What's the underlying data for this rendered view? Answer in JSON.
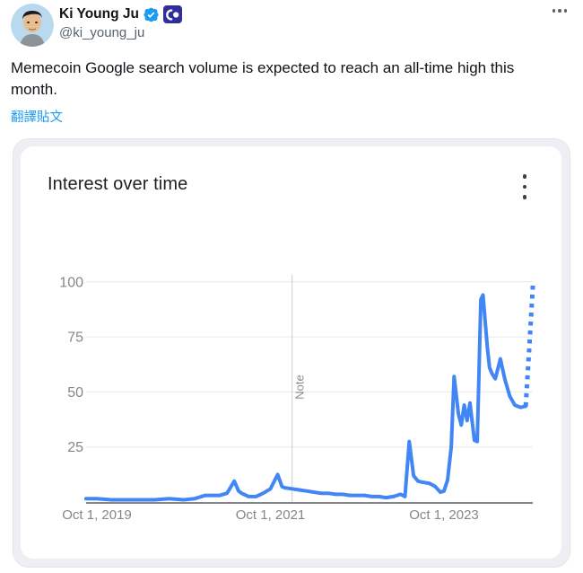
{
  "tweet": {
    "display_name": "Ki Young Ju",
    "handle": "@ki_young_ju",
    "text": "Memecoin Google search volume is expected to reach an all-time high this month.",
    "translate_label": "翻譯貼文"
  },
  "card": {
    "title": "Interest over time"
  },
  "colors": {
    "link_blue": "#1d9bf0",
    "line_blue": "#4285f4",
    "affiliate_badge_bg": "#312d9b",
    "axis_label_gray": "#848689"
  },
  "chart_data": {
    "type": "line",
    "title": "Interest over time",
    "x_unit": "months since Oct 1, 2019",
    "ylim": [
      0,
      100
    ],
    "y_ticks": [
      25,
      50,
      75,
      100
    ],
    "x_ticks": [
      {
        "m": 0,
        "label": "Oct 1, 2019"
      },
      {
        "m": 24,
        "label": "Oct 1, 2021"
      },
      {
        "m": 48,
        "label": "Oct 1, 2023"
      }
    ],
    "note_annotation": {
      "m": 27,
      "label": "Note"
    },
    "line_color": "#4285f4",
    "grid": true,
    "legend": "none",
    "series": [
      {
        "name": "Interest over time",
        "points": [
          [
            -1.5,
            1.5
          ],
          [
            0,
            1.5
          ],
          [
            2,
            1
          ],
          [
            4,
            1
          ],
          [
            6,
            1
          ],
          [
            8,
            1
          ],
          [
            10,
            1.5
          ],
          [
            12,
            1
          ],
          [
            13.5,
            1.5
          ],
          [
            15,
            3
          ],
          [
            16,
            3
          ],
          [
            17,
            3
          ],
          [
            18,
            4
          ],
          [
            19,
            9.5
          ],
          [
            19.6,
            5
          ],
          [
            20,
            4
          ],
          [
            21,
            2.5
          ],
          [
            22,
            2.5
          ],
          [
            23,
            4
          ],
          [
            24,
            6
          ],
          [
            25,
            12.5
          ],
          [
            25.6,
            7
          ],
          [
            26,
            6.5
          ],
          [
            27,
            6
          ],
          [
            28,
            5.5
          ],
          [
            29,
            5
          ],
          [
            30,
            4.5
          ],
          [
            31,
            4
          ],
          [
            32,
            4
          ],
          [
            33,
            3.5
          ],
          [
            34,
            3.5
          ],
          [
            35,
            3
          ],
          [
            36,
            3
          ],
          [
            37,
            3
          ],
          [
            38,
            2.5
          ],
          [
            39,
            2.5
          ],
          [
            40,
            2
          ],
          [
            41,
            2.5
          ],
          [
            42,
            3.5
          ],
          [
            42.6,
            2.5
          ],
          [
            43.2,
            27.5
          ],
          [
            43.8,
            12
          ],
          [
            44.4,
            9.5
          ],
          [
            45,
            9
          ],
          [
            46,
            8.5
          ],
          [
            46.8,
            7
          ],
          [
            47.5,
            4.5
          ],
          [
            48,
            5
          ],
          [
            48.5,
            10
          ],
          [
            49,
            25
          ],
          [
            49.4,
            57
          ],
          [
            50,
            40
          ],
          [
            50.4,
            35
          ],
          [
            50.8,
            44
          ],
          [
            51.2,
            37
          ],
          [
            51.6,
            45
          ],
          [
            52.2,
            28
          ],
          [
            52.6,
            27.5
          ],
          [
            53.1,
            92
          ],
          [
            53.4,
            94
          ],
          [
            54,
            70
          ],
          [
            54.3,
            61
          ],
          [
            54.7,
            58
          ],
          [
            55.1,
            56
          ],
          [
            55.8,
            65
          ],
          [
            56.4,
            56
          ],
          [
            57.1,
            48
          ],
          [
            57.8,
            44
          ],
          [
            58.6,
            43
          ],
          [
            59.3,
            43.5
          ]
        ]
      }
    ],
    "projected_points": [
      [
        59.3,
        43.5
      ],
      [
        59.8,
        70
      ],
      [
        60.3,
        99
      ]
    ]
  }
}
